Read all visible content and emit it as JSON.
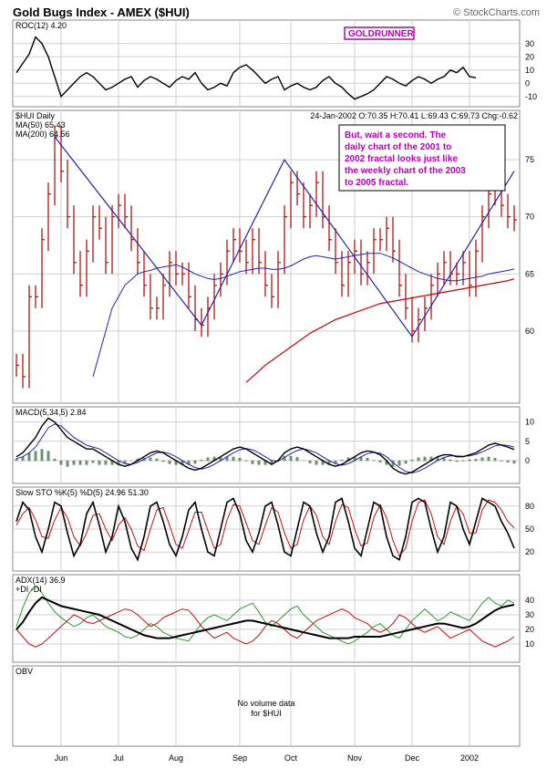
{
  "header": {
    "title": "Gold Bugs Index - AMEX ($HUI)",
    "credit": "© StockCharts.com"
  },
  "colors": {
    "price_bar": "#b01515",
    "trend_line": "#2323a8",
    "ma50": "#2323a8",
    "ma200": "#c01010",
    "annotation_text": "#b800b8",
    "grid": "#cfcfcf"
  },
  "chart_data": [
    {
      "type": "line",
      "panel": "roc",
      "label": "ROC(12)",
      "value_text": "4.20",
      "badge": "GOLDRUNNER",
      "ylim": [
        -15,
        45
      ],
      "ticks": [
        "30",
        "20",
        "10",
        "0",
        "-10"
      ],
      "values": [
        8,
        15,
        22,
        35,
        30,
        20,
        5,
        -10,
        -5,
        0,
        5,
        8,
        5,
        0,
        -5,
        -3,
        0,
        3,
        5,
        -3,
        2,
        5,
        3,
        0,
        -3,
        2,
        5,
        3,
        8,
        0,
        -5,
        -3,
        0,
        -2,
        8,
        12,
        14,
        10,
        5,
        0,
        3,
        5,
        -5,
        -2,
        0,
        -3,
        -5,
        -3,
        2,
        5,
        0,
        -3,
        -8,
        -12,
        -10,
        -8,
        -5,
        0,
        5,
        3,
        0,
        -2,
        2,
        5,
        3,
        0,
        3,
        5,
        10,
        8,
        12,
        5,
        4.2
      ]
    },
    {
      "type": "bar",
      "panel": "price",
      "label": "$HUI Daily",
      "ma50_label": "MA(50) 65.43",
      "ma200_label": "MA(200) 64.56",
      "quote": "24-Jan-2002 O:70.35 H:70.41 L:69.43 C:69.73 Chg:-0.62",
      "annotation": [
        "But, wait a second.  The",
        "daily chart of the 2001 to",
        "2002 fractal looks just like",
        "the weekly chart of the 2003",
        "to 2005 fractal."
      ],
      "ylim": [
        54,
        79
      ],
      "ticks": [
        "75",
        "70",
        "65",
        "60"
      ],
      "closes": [
        57,
        56,
        63,
        63,
        68,
        72,
        77,
        74,
        70,
        66,
        64,
        67,
        70,
        69,
        66,
        70,
        71,
        70,
        68,
        66,
        64,
        62,
        62,
        64,
        66,
        65,
        65,
        63,
        61,
        60.5,
        62,
        64,
        65,
        67,
        68,
        67,
        66,
        68,
        66,
        64,
        63,
        66,
        70,
        73,
        72,
        70,
        71,
        73,
        70,
        68,
        66,
        64,
        66,
        67,
        65,
        66,
        68,
        68,
        69,
        67,
        64,
        62,
        60,
        61,
        62,
        64,
        65,
        66,
        65,
        65,
        66,
        64,
        67,
        70,
        72,
        73,
        71,
        70,
        69.73
      ],
      "ma50": [
        null,
        null,
        null,
        null,
        null,
        null,
        null,
        null,
        null,
        null,
        null,
        null,
        56,
        58,
        60,
        62,
        63,
        64,
        64.5,
        65,
        65.2,
        65.3,
        65.5,
        65.6,
        65.7,
        65.8,
        65.6,
        65.3,
        65,
        64.8,
        64.6,
        64.5,
        64.6,
        64.8,
        65,
        65.2,
        65.3,
        65.4,
        65.5,
        65.5,
        65.4,
        65.4,
        65.5,
        65.7,
        66,
        66.3,
        66.5,
        66.6,
        66.5,
        66.4,
        66.3,
        66.4,
        66.5,
        66.6,
        66.7,
        66.8,
        66.8,
        66.8,
        66.6,
        66.4,
        66.1,
        65.8,
        65.5,
        65.2,
        65,
        64.8,
        64.6,
        64.5,
        64.4,
        64.4,
        64.5,
        64.6,
        64.7,
        64.8,
        65,
        65.1,
        65.2,
        65.3,
        65.43
      ],
      "ma200": [
        null,
        null,
        null,
        null,
        null,
        null,
        null,
        null,
        null,
        null,
        null,
        null,
        null,
        null,
        null,
        null,
        null,
        null,
        null,
        null,
        null,
        null,
        null,
        null,
        null,
        null,
        null,
        null,
        null,
        null,
        null,
        null,
        null,
        null,
        null,
        null,
        55.5,
        56,
        56.5,
        57,
        57.4,
        57.8,
        58.2,
        58.6,
        59,
        59.4,
        59.8,
        60.1,
        60.4,
        60.7,
        61,
        61.2,
        61.4,
        61.6,
        61.8,
        62,
        62.2,
        62.4,
        62.5,
        62.6,
        62.7,
        62.8,
        62.9,
        63,
        63.1,
        63.2,
        63.3,
        63.4,
        63.5,
        63.6,
        63.7,
        63.8,
        63.9,
        64,
        64.1,
        64.2,
        64.3,
        64.4,
        64.56
      ],
      "trendline": [
        [
          6,
          77
        ],
        [
          29,
          60.5
        ],
        [
          42,
          75
        ],
        [
          62,
          59.5
        ],
        [
          78,
          74
        ]
      ]
    },
    {
      "type": "line",
      "panel": "macd",
      "label": "MACD(5,34,5)",
      "value_text": "2.84",
      "ylim": [
        -5,
        13
      ],
      "ticks": [
        "10",
        "5",
        "0"
      ],
      "macd": [
        1,
        2,
        4,
        6,
        9,
        11,
        10,
        8,
        6,
        5,
        4,
        3,
        3,
        2,
        1,
        0,
        -1,
        -1.5,
        -1,
        0,
        1,
        2,
        2.5,
        2,
        1,
        0,
        -1,
        -2,
        -2.5,
        -2,
        -1,
        0,
        1,
        2,
        3,
        3.5,
        3,
        2,
        1,
        0,
        -1,
        0,
        2,
        3,
        3.5,
        3,
        2,
        1,
        0,
        -1,
        -1.5,
        -1,
        0,
        1,
        2,
        2.5,
        2.2,
        1.5,
        0,
        -2,
        -3,
        -3.5,
        -3,
        -2,
        -1,
        0,
        1,
        1.5,
        1.5,
        1,
        1,
        1.5,
        2,
        3,
        4,
        4.5,
        4,
        3.5,
        2.84
      ],
      "signal": [
        0.5,
        1,
        2,
        3.5,
        6,
        8.5,
        9.5,
        9,
        7.5,
        6,
        5,
        4,
        3.5,
        3,
        2,
        1,
        0,
        -0.8,
        -1,
        -0.5,
        0.3,
        1.2,
        2,
        2.2,
        1.8,
        1,
        0,
        -1,
        -1.8,
        -2.2,
        -1.8,
        -1,
        0,
        1,
        2,
        2.8,
        3.1,
        2.8,
        2,
        1,
        0,
        -0.2,
        0.8,
        1.8,
        2.6,
        3,
        2.6,
        2,
        1,
        0,
        -0.8,
        -1.2,
        -0.8,
        0,
        1,
        1.8,
        2.1,
        1.9,
        1,
        -0.5,
        -1.8,
        -2.8,
        -3.2,
        -2.8,
        -2,
        -1,
        0,
        0.8,
        1.2,
        1.2,
        1.1,
        1.2,
        1.6,
        2.2,
        3,
        3.8,
        4.1,
        3.9,
        3.5
      ],
      "ttt_hist": true
    },
    {
      "type": "line",
      "panel": "sto",
      "label": "Slow STO %K(5) %D(5)",
      "value_text": "24.96  51.30",
      "ylim": [
        0,
        100
      ],
      "ticks": [
        "80",
        "50",
        "20"
      ],
      "k": [
        60,
        85,
        75,
        40,
        20,
        50,
        85,
        80,
        45,
        15,
        30,
        70,
        85,
        55,
        20,
        40,
        80,
        60,
        25,
        10,
        40,
        80,
        85,
        60,
        30,
        15,
        40,
        75,
        85,
        50,
        20,
        15,
        50,
        85,
        90,
        70,
        35,
        20,
        45,
        80,
        85,
        55,
        20,
        15,
        50,
        85,
        80,
        45,
        20,
        40,
        85,
        90,
        60,
        25,
        15,
        50,
        85,
        80,
        40,
        15,
        10,
        40,
        85,
        90,
        85,
        50,
        20,
        40,
        85,
        80,
        50,
        30,
        60,
        90,
        85,
        80,
        60,
        45,
        24.96
      ],
      "d": [
        55,
        70,
        78,
        62,
        40,
        38,
        62,
        78,
        65,
        40,
        28,
        45,
        68,
        70,
        50,
        35,
        55,
        65,
        50,
        28,
        22,
        50,
        75,
        78,
        55,
        30,
        25,
        48,
        72,
        72,
        48,
        25,
        30,
        62,
        82,
        80,
        58,
        35,
        30,
        55,
        78,
        72,
        45,
        25,
        30,
        62,
        80,
        68,
        40,
        30,
        60,
        82,
        78,
        50,
        28,
        32,
        65,
        82,
        65,
        35,
        15,
        25,
        60,
        85,
        88,
        70,
        40,
        30,
        60,
        80,
        70,
        45,
        45,
        75,
        88,
        85,
        75,
        60,
        51.3
      ]
    },
    {
      "type": "line",
      "panel": "adx",
      "label": "ADX(14)",
      "value_text": "36.9",
      "di_label": "+DI  -DI",
      "ylim": [
        0,
        55
      ],
      "ticks": [
        "40",
        "30",
        "20",
        "10"
      ],
      "adx": [
        20,
        25,
        32,
        38,
        42,
        40,
        38,
        36,
        35,
        34,
        33,
        32,
        31,
        30,
        28,
        26,
        24,
        22,
        20,
        18,
        16,
        15,
        14,
        14,
        14,
        15,
        16,
        17,
        18,
        19,
        20,
        21,
        22,
        23,
        24,
        25,
        26,
        26,
        25,
        24,
        23,
        22,
        21,
        20,
        19,
        18,
        17,
        16,
        15,
        14,
        14,
        14,
        14,
        15,
        15,
        15,
        15,
        15,
        16,
        17,
        18,
        19,
        20,
        21,
        22,
        23,
        24,
        24,
        23,
        22,
        21,
        22,
        24,
        27,
        30,
        33,
        35,
        36,
        36.9
      ],
      "plus_di": [
        22,
        35,
        45,
        50,
        45,
        38,
        32,
        28,
        25,
        22,
        24,
        28,
        30,
        26,
        22,
        20,
        18,
        15,
        14,
        16,
        20,
        24,
        22,
        18,
        16,
        14,
        13,
        12,
        18,
        24,
        28,
        30,
        28,
        26,
        30,
        34,
        36,
        38,
        32,
        25,
        22,
        26,
        30,
        34,
        36,
        30,
        26,
        22,
        18,
        16,
        14,
        12,
        10,
        12,
        15,
        18,
        22,
        24,
        20,
        16,
        14,
        20,
        26,
        30,
        34,
        30,
        26,
        28,
        32,
        30,
        28,
        26,
        32,
        38,
        42,
        38,
        36,
        40,
        38
      ],
      "minus_di": [
        20,
        15,
        10,
        8,
        10,
        14,
        18,
        22,
        26,
        30,
        28,
        25,
        24,
        26,
        28,
        30,
        32,
        34,
        33,
        30,
        26,
        22,
        24,
        28,
        30,
        32,
        34,
        33,
        28,
        22,
        18,
        14,
        16,
        18,
        14,
        12,
        10,
        12,
        16,
        22,
        26,
        24,
        20,
        16,
        14,
        18,
        22,
        26,
        28,
        30,
        32,
        34,
        32,
        28,
        26,
        24,
        20,
        18,
        20,
        24,
        30,
        28,
        24,
        20,
        18,
        20,
        22,
        18,
        14,
        16,
        18,
        20,
        16,
        12,
        10,
        8,
        10,
        12,
        15
      ]
    },
    {
      "type": "table",
      "panel": "obv",
      "label": "OBV",
      "message": [
        "No volume data",
        "for $HUI"
      ]
    }
  ],
  "x_axis": {
    "labels": [
      "Jun",
      "Jul",
      "Aug",
      "Sep",
      "Oct",
      "Nov",
      "Dec",
      "2002"
    ],
    "label_index": [
      7,
      16,
      25,
      35,
      43,
      53,
      62,
      71
    ],
    "count": 79
  }
}
